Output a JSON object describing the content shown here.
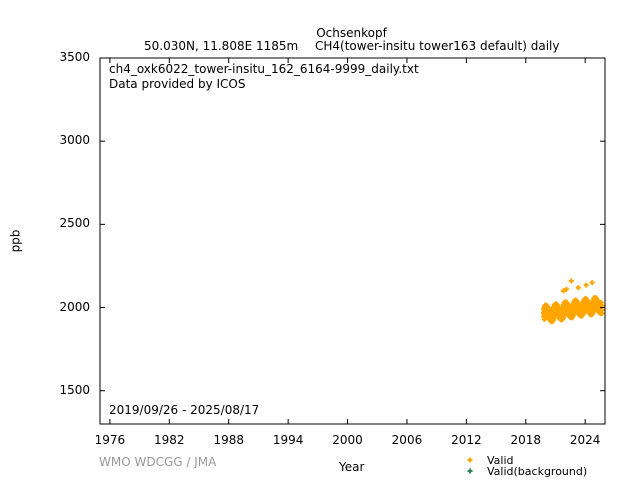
{
  "chart_data": {
    "type": "scatter",
    "title": "Ochsenkopf",
    "subtitle_left": "50.030N, 11.808E 1185m",
    "subtitle_right": "CH4(tower-insitu tower163 default) daily",
    "filename": "ch4_oxk6022_tower-insitu_162_6164-9999_daily.txt",
    "provider": "Data provided by ICOS",
    "date_range": "2019/09/26 - 2025/08/17",
    "xlabel": "Year",
    "ylabel": "ppb",
    "xlim": [
      1975,
      2026
    ],
    "ylim": [
      1300,
      3500
    ],
    "xticks": [
      1976,
      1982,
      1988,
      1994,
      2000,
      2006,
      2012,
      2018,
      2024
    ],
    "yticks": [
      1500,
      2000,
      2500,
      3000,
      3500
    ],
    "credit": "WMO WDCGG / JMA",
    "legend": [
      {
        "label": "Valid",
        "color": "#ffa500"
      },
      {
        "label": "Valid(background)",
        "color": "#2e8b57"
      }
    ],
    "legend_position": "bottom-right",
    "series": [
      {
        "name": "Valid",
        "color": "#ffa500",
        "x_start": 2019.79,
        "x_step": 0.0833,
        "y_mean": [
          1968,
          1980,
          1988,
          1990,
          1985,
          1978,
          1970,
          1962,
          1958,
          1955,
          1957,
          1965,
          1978,
          1990,
          1995,
          1998,
          1995,
          1988,
          1980,
          1972,
          1968,
          1966,
          1970,
          1978,
          1990,
          2002,
          2008,
          2010,
          2005,
          1998,
          1990,
          1985,
          1980,
          1978,
          1982,
          1990,
          2000,
          2012,
          2018,
          2020,
          2015,
          2008,
          2000,
          1993,
          1990,
          1988,
          1992,
          2000,
          2010,
          2020,
          2025,
          2030,
          2025,
          2018,
          2010,
          2002,
          1998,
          1996,
          2000,
          2008,
          2018,
          2030,
          2035,
          2035,
          2030,
          2022,
          2015,
          2008,
          2005,
          2003,
          2005
        ],
        "y_low": [
          1946,
          1958,
          1966,
          1968,
          1963,
          1956,
          1948,
          1940,
          1936,
          1933,
          1935,
          1943,
          1956,
          1968,
          1973,
          1976,
          1973,
          1966,
          1958,
          1950,
          1946,
          1944,
          1948,
          1956,
          1968,
          1980,
          1986,
          1988,
          1983,
          1976,
          1968,
          1963,
          1958,
          1956,
          1960,
          1968,
          1978,
          1990,
          1996,
          1998,
          1993,
          1986,
          1978,
          1971,
          1968,
          1966,
          1970,
          1978,
          1988,
          1998,
          2003,
          2008,
          2003,
          1996,
          1988,
          1980,
          1976,
          1974,
          1978,
          1986,
          1996,
          2008,
          2013,
          2013,
          2008,
          2000,
          1993,
          1986,
          1983,
          1981,
          1983
        ],
        "y_high": [
          1993,
          2005,
          2013,
          2015,
          2010,
          2003,
          1995,
          1987,
          1983,
          1980,
          1982,
          1990,
          2003,
          2015,
          2020,
          2023,
          2020,
          2013,
          2005,
          1997,
          1993,
          1991,
          1995,
          2003,
          2015,
          2027,
          2033,
          2035,
          2030,
          2023,
          2015,
          2010,
          2005,
          2003,
          2007,
          2015,
          2025,
          2037,
          2043,
          2045,
          2040,
          2033,
          2025,
          2018,
          2015,
          2013,
          2017,
          2025,
          2035,
          2045,
          2050,
          2055,
          2050,
          2043,
          2035,
          2027,
          2023,
          2021,
          2025,
          2033,
          2043,
          2055,
          2060,
          2060,
          2055,
          2047,
          2040,
          2033,
          2030,
          2028,
          2030
        ],
        "outliers": [
          [
            2021.8,
            2100
          ],
          [
            2022.1,
            2110
          ],
          [
            2022.6,
            2160
          ],
          [
            2023.3,
            2120
          ],
          [
            2024.1,
            2135
          ],
          [
            2024.7,
            2150
          ]
        ]
      },
      {
        "name": "Valid(background)",
        "color": "#2e8b57",
        "points": []
      }
    ]
  }
}
